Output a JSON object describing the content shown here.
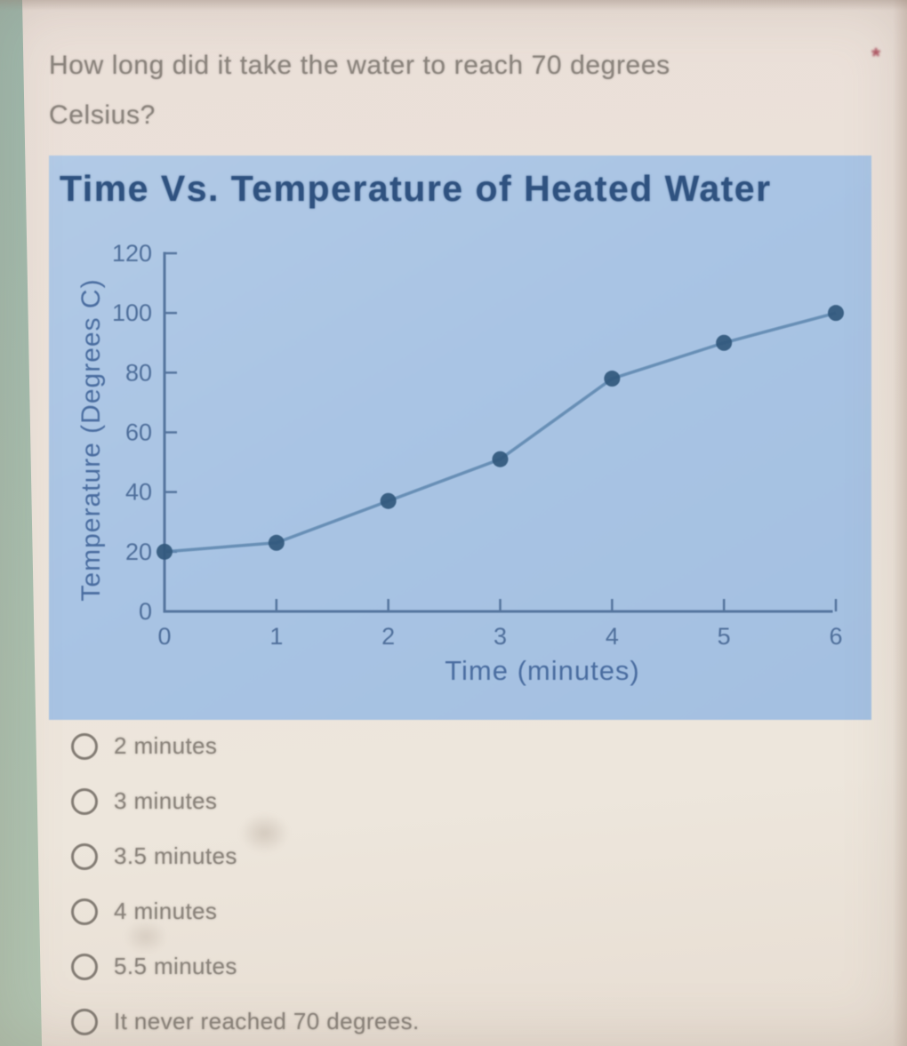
{
  "question": {
    "lines": [
      "How long did it take the water to reach 70 degrees",
      "Celsius?"
    ],
    "required_marker": "*"
  },
  "chart_data": {
    "type": "line",
    "title": "Time Vs. Temperature of Heated Water",
    "xlabel": "Time (minutes)",
    "ylabel": "Temperature (Degrees C)",
    "x": [
      0,
      1,
      2,
      3,
      4,
      5,
      6
    ],
    "y": [
      20,
      23,
      37,
      51,
      78,
      90,
      100
    ],
    "xlim": [
      0,
      6
    ],
    "ylim": [
      0,
      120
    ],
    "xticks": [
      0,
      1,
      2,
      3,
      4,
      5,
      6
    ],
    "yticks": [
      0,
      20,
      40,
      60,
      80,
      100,
      120
    ],
    "grid": false,
    "legend": false,
    "plot_bg": "#a9c4e4",
    "axis_color": "#55759e",
    "tick_label_color": "#4f6f9b",
    "axis_title_color": "#4a6da0",
    "line_color": "#6189b0",
    "point_color": "#32587d",
    "title_color": "#2f5280"
  },
  "options": [
    {
      "label": "2 minutes"
    },
    {
      "label": "3 minutes"
    },
    {
      "label": "3.5 minutes"
    },
    {
      "label": "4 minutes"
    },
    {
      "label": "5.5 minutes"
    },
    {
      "label": "It never reached 70 degrees."
    }
  ],
  "colors": {
    "page_bg": "#ece3da",
    "screen_edge_green": "#a9bfae",
    "question_text": "#8b847d",
    "required_red": "#ad5260",
    "radio_outline": "#837c74"
  }
}
